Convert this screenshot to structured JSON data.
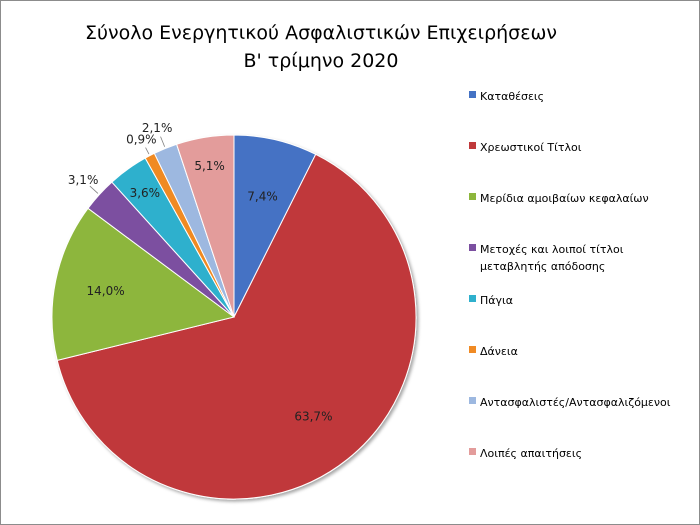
{
  "chart_data": {
    "type": "pie",
    "title": [
      "Σύνολο Ενεργητικού Ασφαλιστικών Επιχειρήσεων",
      "Β' τρίμηνο 2020"
    ],
    "legend_position": "right",
    "slices": [
      {
        "name": "Καταθέσεις",
        "value": 7.4,
        "label": "7,4%",
        "color": "#4472C4"
      },
      {
        "name": "Χρεωστικοί Τίτλοι",
        "value": 63.7,
        "label": "63,7%",
        "color": "#C0393B"
      },
      {
        "name": "Μερίδια αμοιβαίων κεφαλαίων",
        "value": 14.0,
        "label": "14,0%",
        "color": "#8DB63C"
      },
      {
        "name": "Μετοχές και λοιποί τίτλοι μεταβλητής απόδοσης",
        "value": 3.1,
        "label": "3,1%",
        "color": "#7B4FA0"
      },
      {
        "name": "Πάγια",
        "value": 3.6,
        "label": "3,6%",
        "color": "#2FB0CD"
      },
      {
        "name": "Δάνεια",
        "value": 0.9,
        "label": "0,9%",
        "color": "#F08A24"
      },
      {
        "name": "Αντασφαλιστές/Αντασφαλιζόμενοι",
        "value": 2.1,
        "label": "2,1%",
        "color": "#9DB8E0"
      },
      {
        "name": "Λοιπές απαιτήσεις",
        "value": 5.1,
        "label": "5,1%",
        "color": "#E39C9B"
      }
    ]
  }
}
